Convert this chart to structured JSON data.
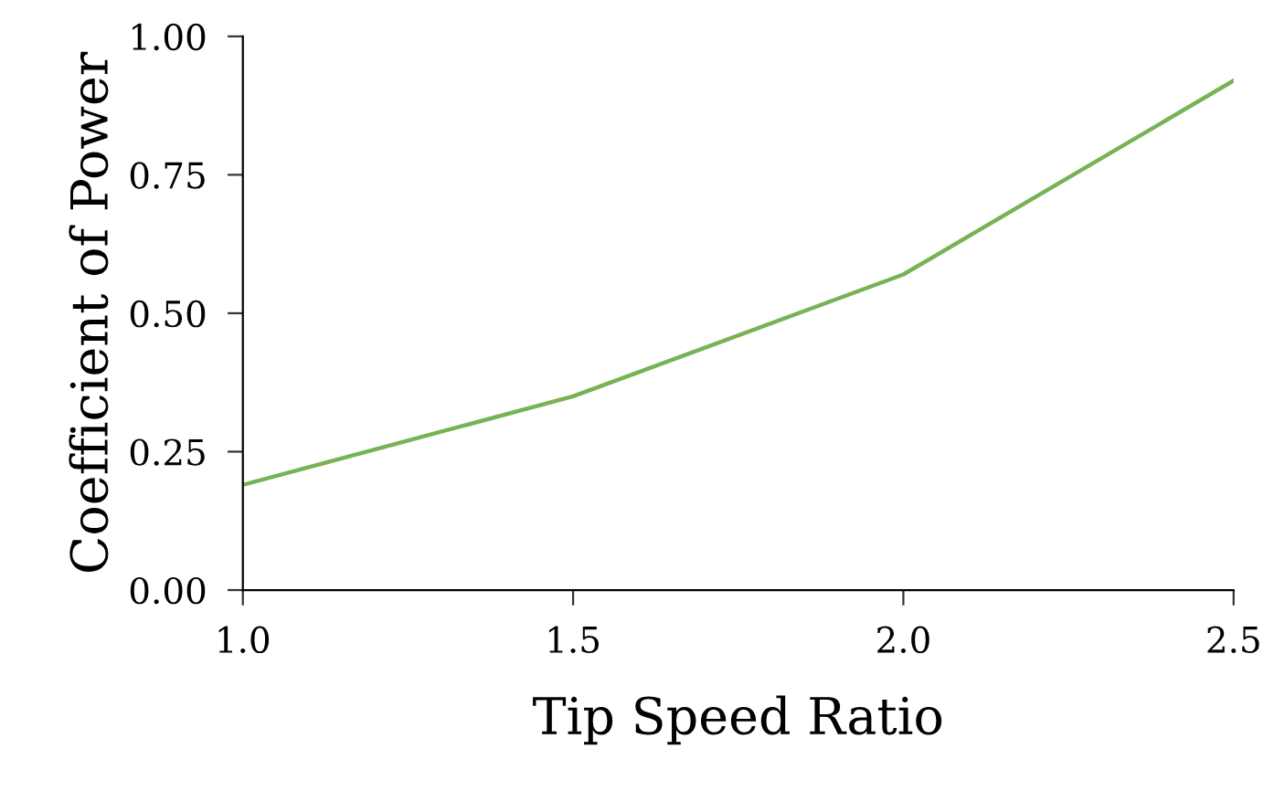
{
  "chart_data": {
    "type": "line",
    "xlabel": "Tip Speed Ratio",
    "ylabel": "Coefficient of Power",
    "x": [
      1.0,
      1.5,
      2.0,
      2.5
    ],
    "series": [
      {
        "color": "#77b255",
        "values": [
          0.19,
          0.35,
          0.57,
          0.92
        ]
      }
    ],
    "xlim": [
      1.0,
      2.5
    ],
    "ylim": [
      0,
      1.0
    ],
    "xticks": [
      {
        "value": 1.0,
        "label": "1.0"
      },
      {
        "value": 1.5,
        "label": "1.5"
      },
      {
        "value": 2.0,
        "label": "2.0"
      },
      {
        "value": 2.5,
        "label": "2.5"
      }
    ],
    "yticks": [
      {
        "value": 0,
        "label": "0.00"
      },
      {
        "value": 0.25,
        "label": "0.25"
      },
      {
        "value": 0.5,
        "label": "0.50"
      },
      {
        "value": 0.75,
        "label": "0.75"
      },
      {
        "value": 1.0,
        "label": "1.00"
      }
    ],
    "grid": false,
    "legend": false
  }
}
